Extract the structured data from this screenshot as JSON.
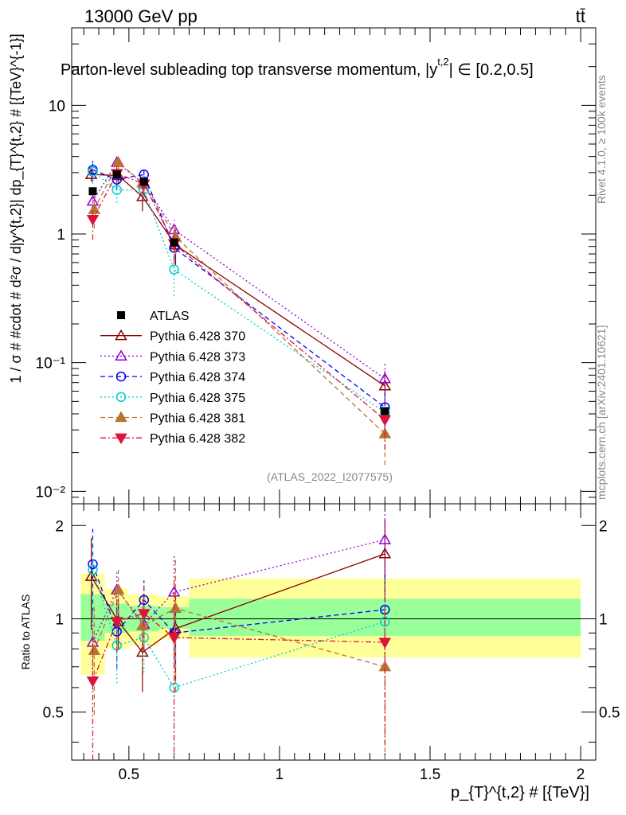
{
  "header": {
    "left": "13000 GeV pp",
    "right": "tt̄",
    "title": "Parton-level subleading top transverse momentum, |y",
    "title_sup": "t,2",
    "title_rest": "| ∈ [0.2,0.5]",
    "watermark": "(ATLAS_2022_I2077575)",
    "side_top": "Rivet 4.1.0, ≥ 100k events",
    "side_bottom": "mcplots.cern.ch [arXiv:2401.10621]"
  },
  "chart_data": {
    "type": "scatter",
    "main": {
      "ylabel": "1 / σ # #cdot # d²σ / d|y^{t,2}| dp_{T}^{t,2} # [{TeV}^{-1}]",
      "yscale": "log",
      "ylim": [
        0.008,
        40
      ],
      "yticks": [
        {
          "value": 10,
          "label": "10"
        },
        {
          "value": 1,
          "label": "1"
        },
        {
          "value": 0.1,
          "label": "10⁻¹"
        },
        {
          "value": 0.01,
          "label": "10⁻²"
        }
      ]
    },
    "ratio": {
      "ylabel": "Ratio to ATLAS",
      "ylim": [
        0.35,
        2.35
      ],
      "yticks": [
        {
          "value": 0.5,
          "label": "0.5"
        },
        {
          "value": 1,
          "label": "1"
        },
        {
          "value": 2,
          "label": "2"
        }
      ],
      "bands": [
        {
          "x0": 0.34,
          "x1": 0.42,
          "green": [
            0.85,
            1.2
          ],
          "yellow": [
            0.66,
            1.4
          ]
        },
        {
          "x0": 0.42,
          "x1": 0.5,
          "green": [
            0.9,
            1.12
          ],
          "yellow": [
            0.8,
            1.25
          ]
        },
        {
          "x0": 0.5,
          "x1": 0.6,
          "green": [
            0.91,
            1.1
          ],
          "yellow": [
            0.82,
            1.2
          ]
        },
        {
          "x0": 0.6,
          "x1": 0.7,
          "green": [
            0.93,
            1.09
          ],
          "yellow": [
            0.86,
            1.18
          ]
        },
        {
          "x0": 0.7,
          "x1": 2.0,
          "green": [
            0.88,
            1.16
          ],
          "yellow": [
            0.75,
            1.35
          ]
        }
      ]
    },
    "x": {
      "label": "p_{T}^{t,2} # [{TeV}]",
      "xlim": [
        0.31,
        2.05
      ],
      "ticks": [
        {
          "value": 0.5,
          "label": "0.5"
        },
        {
          "value": 1,
          "label": "1"
        },
        {
          "value": 1.5,
          "label": "1.5"
        },
        {
          "value": 2,
          "label": "2"
        }
      ]
    },
    "data": {
      "name": "ATLAS",
      "x": [
        0.38,
        0.46,
        0.55,
        0.65,
        1.35
      ],
      "y": [
        2.15,
        2.9,
        2.55,
        0.86,
        0.042
      ]
    },
    "series": [
      {
        "name": "Pythia 6.428 370",
        "color": "#8b0000",
        "dash": "",
        "marker": "tri-up-open",
        "x": [
          0.375,
          0.465,
          0.545,
          0.655,
          1.35
        ],
        "values": [
          2.9,
          2.85,
          1.95,
          0.82,
          0.066
        ],
        "errs": [
          0.35,
          0.35,
          0.45,
          0.25,
          0.02
        ],
        "ratio": [
          1.37,
          0.98,
          0.78,
          0.93,
          1.62
        ],
        "rerr": [
          0.45,
          0.18,
          0.2,
          0.3,
          0.47
        ]
      },
      {
        "name": "Pythia 6.428 373",
        "color": "#9400d3",
        "dash": "2,3",
        "marker": "tri-up-open",
        "x": [
          0.38,
          0.46,
          0.55,
          0.65,
          1.35
        ],
        "values": [
          1.8,
          3.6,
          2.45,
          1.08,
          0.075
        ],
        "errs": [
          0.4,
          0.45,
          0.4,
          0.2,
          0.025
        ],
        "ratio": [
          0.84,
          1.24,
          0.96,
          1.22,
          1.8
        ],
        "rerr": [
          0.25,
          0.2,
          0.16,
          0.4,
          0.5
        ]
      },
      {
        "name": "Pythia 6.428 374",
        "color": "#0000ff",
        "dash": "6,4",
        "marker": "circle-open",
        "x": [
          0.38,
          0.46,
          0.55,
          0.65,
          1.35
        ],
        "values": [
          3.15,
          2.65,
          2.9,
          0.78,
          0.045
        ],
        "errs": [
          0.6,
          0.4,
          0.4,
          0.15,
          0.015
        ],
        "ratio": [
          1.5,
          0.91,
          1.15,
          0.9,
          1.07
        ],
        "rerr": [
          0.45,
          0.22,
          0.18,
          0.2,
          0.32
        ]
      },
      {
        "name": "Pythia 6.428 375",
        "color": "#00cdcd",
        "dash": "2,3",
        "marker": "circle-open",
        "x": [
          0.38,
          0.46,
          0.55,
          0.65,
          1.35
        ],
        "values": [
          3.05,
          2.2,
          2.2,
          0.53,
          0.041
        ],
        "errs": [
          0.6,
          0.45,
          0.4,
          0.2,
          0.015
        ],
        "ratio": [
          1.44,
          0.82,
          0.87,
          0.6,
          0.98
        ],
        "rerr": [
          0.45,
          0.2,
          0.2,
          0.3,
          0.35
        ]
      },
      {
        "name": "Pythia 6.428 381",
        "color": "#b87333",
        "dash": "6,4",
        "marker": "tri-up-filled",
        "x": [
          0.385,
          0.465,
          0.545,
          0.655,
          1.35
        ],
        "values": [
          1.55,
          3.6,
          2.5,
          0.95,
          0.028
        ],
        "errs": [
          0.45,
          0.5,
          0.5,
          0.25,
          0.012
        ],
        "ratio": [
          0.79,
          1.24,
          0.95,
          1.08,
          0.7
        ],
        "rerr": [
          0.3,
          0.2,
          0.25,
          0.5,
          0.38
        ]
      },
      {
        "name": "Pythia 6.428 382",
        "color": "#dc143c",
        "dash": "7,3,2,3",
        "marker": "tri-down-filled",
        "x": [
          0.38,
          0.46,
          0.55,
          0.65,
          1.35
        ],
        "values": [
          1.3,
          2.95,
          2.45,
          0.84,
          0.036
        ],
        "errs": [
          0.4,
          0.45,
          0.45,
          0.25,
          0.015
        ],
        "ratio": [
          0.63,
          0.98,
          1.04,
          0.87,
          0.84
        ],
        "rerr": [
          0.3,
          0.2,
          0.25,
          0.5,
          0.45
        ]
      }
    ]
  }
}
